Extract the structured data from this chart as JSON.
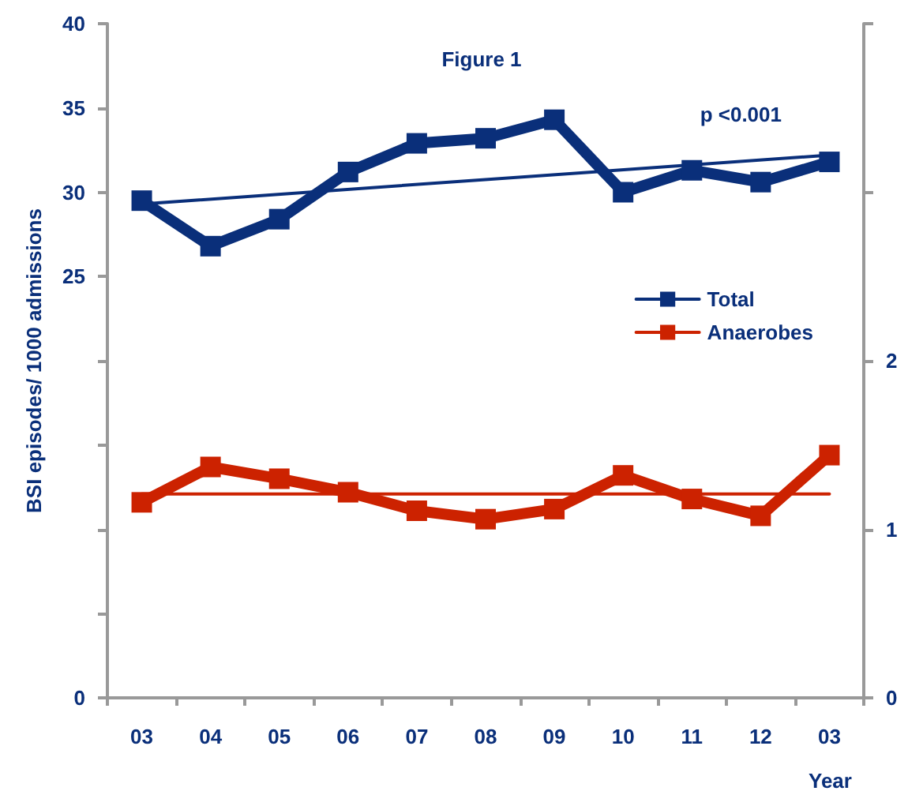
{
  "chart_data": {
    "type": "line",
    "title": "Figure 1",
    "xlabel": "Year",
    "ylabel": "BSI episodes/ 1000 admissions",
    "categories": [
      "03",
      "04",
      "05",
      "06",
      "07",
      "08",
      "09",
      "10",
      "11",
      "12",
      "03"
    ],
    "series": [
      {
        "name": "Total",
        "color": "#0a2f7a",
        "marker": "square",
        "values": [
          29.5,
          26.8,
          28.4,
          31.2,
          32.9,
          33.2,
          34.3,
          30.0,
          31.3,
          30.6,
          31.8
        ]
      },
      {
        "name": "Anaerobes",
        "color": "#cc2200",
        "marker": "square",
        "axis": "y2",
        "values": [
          1.16,
          1.37,
          1.3,
          1.22,
          1.11,
          1.06,
          1.12,
          1.32,
          1.18,
          1.08,
          1.44
        ]
      },
      {
        "color": "#0a2f7a",
        "marker": "none",
        "values": [
          29.3,
          null,
          null,
          null,
          null,
          null,
          null,
          null,
          null,
          null,
          32.2
        ]
      },
      {
        "color": "#cc2200",
        "marker": "none",
        "axis": "y2",
        "values": [
          1.21,
          null,
          null,
          null,
          null,
          null,
          null,
          null,
          null,
          null,
          1.21
        ]
      }
    ],
    "ylim": [
      0,
      40
    ],
    "yticks": [
      0,
      {
        "value": 5,
        "label": null
      },
      {
        "value": 10,
        "label": null
      },
      {
        "value": 15,
        "label": null
      },
      {
        "value": 20,
        "label": null
      },
      25,
      30,
      35,
      40
    ],
    "y2lim": [
      0,
      4
    ],
    "y2ticks": [
      0,
      1,
      2,
      {
        "value": 3,
        "label": null
      },
      {
        "value": 4,
        "label": null
      }
    ],
    "annotations": [
      "p <0.001"
    ],
    "legend": "right",
    "grid": false
  }
}
